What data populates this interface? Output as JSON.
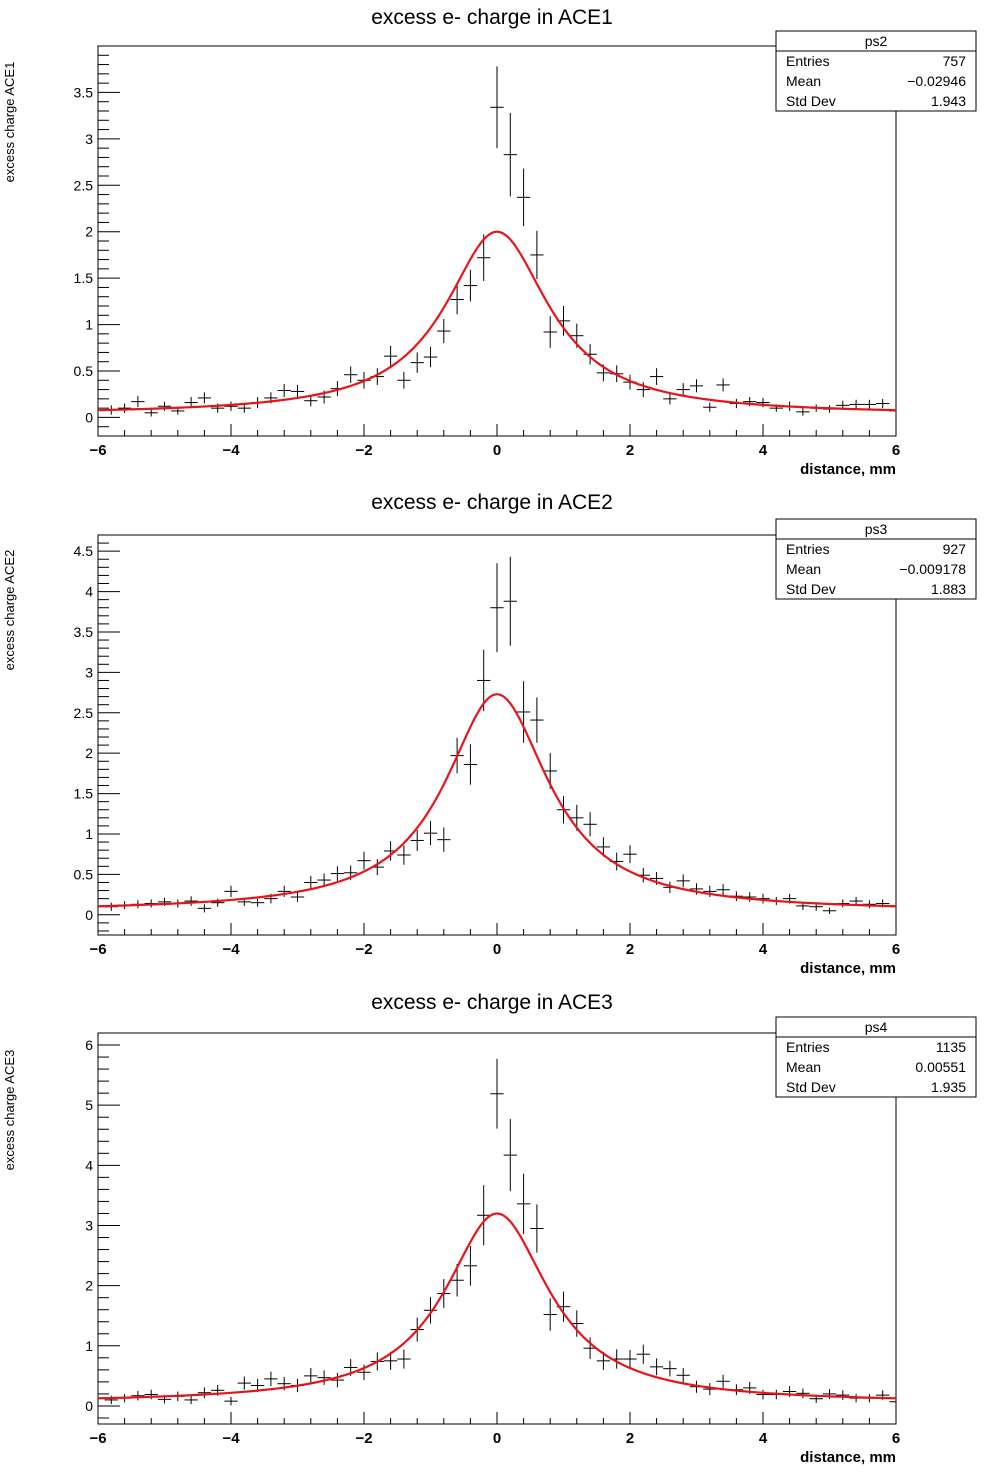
{
  "chart_data": [
    {
      "type": "scatter",
      "title": "excess e- charge in ACE1",
      "xlabel": "distance, mm",
      "ylabel": "excess charge ACE1",
      "xlim": [
        -6,
        6
      ],
      "ylim": [
        -0.2,
        4.0
      ],
      "yticks": [
        0,
        0.5,
        1,
        1.5,
        2,
        2.5,
        3,
        3.5
      ],
      "ytick_labels": [
        "0",
        "0.5",
        "1",
        "1.5",
        "2",
        "2.5",
        "3",
        "3.5"
      ],
      "xticks": [
        -6,
        -4,
        -2,
        0,
        2,
        4,
        6
      ],
      "xtick_labels": [
        "−6",
        "−4",
        "−2",
        "0",
        "2",
        "4",
        "6"
      ],
      "grid": false,
      "stats": {
        "name": "ps2",
        "rows": [
          [
            "Entries",
            "757"
          ],
          [
            "Mean",
            "−0.02946"
          ],
          [
            "Std Dev",
            "1.943"
          ]
        ]
      },
      "fit": {
        "color": "#e8141c",
        "peak": 2.0,
        "center": 0,
        "width": 0.95,
        "baseline": 0.03
      },
      "points": [
        {
          "x": -5.8,
          "y": 0.08,
          "err": 0.05
        },
        {
          "x": -5.6,
          "y": 0.1,
          "err": 0.05
        },
        {
          "x": -5.4,
          "y": 0.17,
          "err": 0.06
        },
        {
          "x": -5.2,
          "y": 0.05,
          "err": 0.04
        },
        {
          "x": -5.0,
          "y": 0.12,
          "err": 0.05
        },
        {
          "x": -4.8,
          "y": 0.07,
          "err": 0.04
        },
        {
          "x": -4.6,
          "y": 0.16,
          "err": 0.06
        },
        {
          "x": -4.4,
          "y": 0.21,
          "err": 0.06
        },
        {
          "x": -4.2,
          "y": 0.1,
          "err": 0.05
        },
        {
          "x": -4.0,
          "y": 0.12,
          "err": 0.05
        },
        {
          "x": -3.8,
          "y": 0.1,
          "err": 0.05
        },
        {
          "x": -3.6,
          "y": 0.16,
          "err": 0.06
        },
        {
          "x": -3.4,
          "y": 0.21,
          "err": 0.06
        },
        {
          "x": -3.2,
          "y": 0.29,
          "err": 0.07
        },
        {
          "x": -3.0,
          "y": 0.28,
          "err": 0.07
        },
        {
          "x": -2.8,
          "y": 0.18,
          "err": 0.06
        },
        {
          "x": -2.6,
          "y": 0.22,
          "err": 0.07
        },
        {
          "x": -2.4,
          "y": 0.31,
          "err": 0.08
        },
        {
          "x": -2.2,
          "y": 0.46,
          "err": 0.09
        },
        {
          "x": -2.0,
          "y": 0.4,
          "err": 0.09
        },
        {
          "x": -1.8,
          "y": 0.44,
          "err": 0.09
        },
        {
          "x": -1.6,
          "y": 0.66,
          "err": 0.11
        },
        {
          "x": -1.4,
          "y": 0.4,
          "err": 0.09
        },
        {
          "x": -1.2,
          "y": 0.59,
          "err": 0.11
        },
        {
          "x": -1.0,
          "y": 0.65,
          "err": 0.11
        },
        {
          "x": -0.8,
          "y": 0.93,
          "err": 0.13
        },
        {
          "x": -0.6,
          "y": 1.27,
          "err": 0.16
        },
        {
          "x": -0.4,
          "y": 1.42,
          "err": 0.17
        },
        {
          "x": -0.2,
          "y": 1.72,
          "err": 0.25
        },
        {
          "x": -0.0,
          "y": 3.34,
          "err": 0.44
        },
        {
          "x": 0.2,
          "y": 2.83,
          "err": 0.45
        },
        {
          "x": 0.4,
          "y": 2.37,
          "err": 0.31
        },
        {
          "x": 0.6,
          "y": 1.75,
          "err": 0.26
        },
        {
          "x": 0.8,
          "y": 0.92,
          "err": 0.17
        },
        {
          "x": 1.0,
          "y": 1.04,
          "err": 0.16
        },
        {
          "x": 1.2,
          "y": 0.88,
          "err": 0.13
        },
        {
          "x": 1.4,
          "y": 0.68,
          "err": 0.11
        },
        {
          "x": 1.6,
          "y": 0.48,
          "err": 0.09
        },
        {
          "x": 1.8,
          "y": 0.47,
          "err": 0.09
        },
        {
          "x": 2.0,
          "y": 0.38,
          "err": 0.08
        },
        {
          "x": 2.2,
          "y": 0.3,
          "err": 0.08
        },
        {
          "x": 2.4,
          "y": 0.44,
          "err": 0.09
        },
        {
          "x": 2.6,
          "y": 0.2,
          "err": 0.06
        },
        {
          "x": 2.8,
          "y": 0.3,
          "err": 0.07
        },
        {
          "x": 3.0,
          "y": 0.34,
          "err": 0.07
        },
        {
          "x": 3.2,
          "y": 0.11,
          "err": 0.05
        },
        {
          "x": 3.4,
          "y": 0.35,
          "err": 0.07
        },
        {
          "x": 3.6,
          "y": 0.15,
          "err": 0.05
        },
        {
          "x": 3.8,
          "y": 0.17,
          "err": 0.05
        },
        {
          "x": 4.0,
          "y": 0.16,
          "err": 0.05
        },
        {
          "x": 4.2,
          "y": 0.1,
          "err": 0.04
        },
        {
          "x": 4.4,
          "y": 0.12,
          "err": 0.05
        },
        {
          "x": 4.6,
          "y": 0.06,
          "err": 0.04
        },
        {
          "x": 4.8,
          "y": 0.1,
          "err": 0.04
        },
        {
          "x": 5.0,
          "y": 0.09,
          "err": 0.04
        },
        {
          "x": 5.2,
          "y": 0.13,
          "err": 0.05
        },
        {
          "x": 5.4,
          "y": 0.14,
          "err": 0.05
        },
        {
          "x": 5.6,
          "y": 0.14,
          "err": 0.05
        },
        {
          "x": 5.8,
          "y": 0.15,
          "err": 0.05
        },
        {
          "x": 6.0,
          "y": 0.07,
          "err": 0.04
        }
      ]
    },
    {
      "type": "scatter",
      "title": "excess e- charge in ACE2",
      "xlabel": "distance, mm",
      "ylabel": "excess charge ACE2",
      "xlim": [
        -6,
        6
      ],
      "ylim": [
        -0.25,
        4.7
      ],
      "yticks": [
        0,
        0.5,
        1,
        1.5,
        2,
        2.5,
        3,
        3.5,
        4,
        4.5
      ],
      "ytick_labels": [
        "0",
        "0.5",
        "1",
        "1.5",
        "2",
        "2.5",
        "3",
        "3.5",
        "4",
        "4.5"
      ],
      "xticks": [
        -6,
        -4,
        -2,
        0,
        2,
        4,
        6
      ],
      "xtick_labels": [
        "−6",
        "−4",
        "−2",
        "0",
        "2",
        "4",
        "6"
      ],
      "grid": false,
      "stats": {
        "name": "ps3",
        "rows": [
          [
            "Entries",
            "927"
          ],
          [
            "Mean",
            "−0.009178"
          ],
          [
            "Std Dev",
            "1.883"
          ]
        ]
      },
      "fit": {
        "color": "#e8141c",
        "peak": 2.73,
        "center": 0,
        "width": 0.95,
        "baseline": 0.04
      },
      "points": [
        {
          "x": -5.8,
          "y": 0.1,
          "err": 0.05
        },
        {
          "x": -5.6,
          "y": 0.12,
          "err": 0.05
        },
        {
          "x": -5.4,
          "y": 0.13,
          "err": 0.05
        },
        {
          "x": -5.2,
          "y": 0.14,
          "err": 0.05
        },
        {
          "x": -5.0,
          "y": 0.16,
          "err": 0.05
        },
        {
          "x": -4.8,
          "y": 0.14,
          "err": 0.05
        },
        {
          "x": -4.6,
          "y": 0.17,
          "err": 0.06
        },
        {
          "x": -4.4,
          "y": 0.08,
          "err": 0.05
        },
        {
          "x": -4.2,
          "y": 0.15,
          "err": 0.05
        },
        {
          "x": -4.0,
          "y": 0.29,
          "err": 0.07
        },
        {
          "x": -3.8,
          "y": 0.16,
          "err": 0.05
        },
        {
          "x": -3.6,
          "y": 0.15,
          "err": 0.05
        },
        {
          "x": -3.4,
          "y": 0.2,
          "err": 0.06
        },
        {
          "x": -3.2,
          "y": 0.29,
          "err": 0.07
        },
        {
          "x": -3.0,
          "y": 0.22,
          "err": 0.06
        },
        {
          "x": -2.8,
          "y": 0.4,
          "err": 0.08
        },
        {
          "x": -2.6,
          "y": 0.43,
          "err": 0.08
        },
        {
          "x": -2.4,
          "y": 0.51,
          "err": 0.09
        },
        {
          "x": -2.2,
          "y": 0.52,
          "err": 0.09
        },
        {
          "x": -2.0,
          "y": 0.67,
          "err": 0.11
        },
        {
          "x": -1.8,
          "y": 0.59,
          "err": 0.1
        },
        {
          "x": -1.6,
          "y": 0.79,
          "err": 0.12
        },
        {
          "x": -1.4,
          "y": 0.74,
          "err": 0.12
        },
        {
          "x": -1.2,
          "y": 0.92,
          "err": 0.13
        },
        {
          "x": -1.0,
          "y": 1.01,
          "err": 0.15
        },
        {
          "x": -0.8,
          "y": 0.93,
          "err": 0.15
        },
        {
          "x": -0.6,
          "y": 1.97,
          "err": 0.22
        },
        {
          "x": -0.4,
          "y": 1.86,
          "err": 0.25
        },
        {
          "x": -0.2,
          "y": 2.9,
          "err": 0.38
        },
        {
          "x": -0.0,
          "y": 3.8,
          "err": 0.55
        },
        {
          "x": 0.2,
          "y": 3.88,
          "err": 0.55
        },
        {
          "x": 0.4,
          "y": 2.51,
          "err": 0.38
        },
        {
          "x": 0.6,
          "y": 2.41,
          "err": 0.28
        },
        {
          "x": 0.8,
          "y": 1.78,
          "err": 0.22
        },
        {
          "x": 1.0,
          "y": 1.3,
          "err": 0.17
        },
        {
          "x": 1.2,
          "y": 1.2,
          "err": 0.16
        },
        {
          "x": 1.4,
          "y": 1.12,
          "err": 0.15
        },
        {
          "x": 1.6,
          "y": 0.84,
          "err": 0.12
        },
        {
          "x": 1.8,
          "y": 0.66,
          "err": 0.11
        },
        {
          "x": 2.0,
          "y": 0.75,
          "err": 0.11
        },
        {
          "x": 2.2,
          "y": 0.49,
          "err": 0.09
        },
        {
          "x": 2.4,
          "y": 0.45,
          "err": 0.08
        },
        {
          "x": 2.6,
          "y": 0.34,
          "err": 0.07
        },
        {
          "x": 2.8,
          "y": 0.42,
          "err": 0.08
        },
        {
          "x": 3.0,
          "y": 0.32,
          "err": 0.07
        },
        {
          "x": 3.2,
          "y": 0.29,
          "err": 0.07
        },
        {
          "x": 3.4,
          "y": 0.31,
          "err": 0.07
        },
        {
          "x": 3.6,
          "y": 0.23,
          "err": 0.06
        },
        {
          "x": 3.8,
          "y": 0.22,
          "err": 0.06
        },
        {
          "x": 4.0,
          "y": 0.2,
          "err": 0.06
        },
        {
          "x": 4.2,
          "y": 0.17,
          "err": 0.05
        },
        {
          "x": 4.4,
          "y": 0.2,
          "err": 0.06
        },
        {
          "x": 4.6,
          "y": 0.11,
          "err": 0.05
        },
        {
          "x": 4.8,
          "y": 0.1,
          "err": 0.05
        },
        {
          "x": 5.0,
          "y": 0.05,
          "err": 0.04
        },
        {
          "x": 5.2,
          "y": 0.14,
          "err": 0.05
        },
        {
          "x": 5.4,
          "y": 0.17,
          "err": 0.05
        },
        {
          "x": 5.6,
          "y": 0.13,
          "err": 0.05
        },
        {
          "x": 5.8,
          "y": 0.14,
          "err": 0.05
        },
        {
          "x": 6.0,
          "y": 0.1,
          "err": 0.05
        }
      ]
    },
    {
      "type": "scatter",
      "title": "excess e- charge in ACE3",
      "xlabel": "distance, mm",
      "ylabel": "excess charge  ACE3",
      "xlim": [
        -6,
        6
      ],
      "ylim": [
        -0.3,
        6.2
      ],
      "yticks": [
        0,
        1,
        2,
        3,
        4,
        5,
        6
      ],
      "ytick_labels": [
        "0",
        "1",
        "2",
        "3",
        "4",
        "5",
        "6"
      ],
      "xticks": [
        -6,
        -4,
        -2,
        0,
        2,
        4,
        6
      ],
      "xtick_labels": [
        "−6",
        "−4",
        "−2",
        "0",
        "2",
        "4",
        "6"
      ],
      "grid": false,
      "stats": {
        "name": "ps4",
        "rows": [
          [
            "Entries",
            "1135"
          ],
          [
            "Mean",
            "0.00551"
          ],
          [
            "Std Dev",
            "1.935"
          ]
        ]
      },
      "fit": {
        "color": "#e8141c",
        "peak": 3.2,
        "center": 0,
        "width": 0.95,
        "baseline": 0.05
      },
      "points": [
        {
          "x": -5.8,
          "y": 0.1,
          "err": 0.07
        },
        {
          "x": -5.6,
          "y": 0.13,
          "err": 0.07
        },
        {
          "x": -5.4,
          "y": 0.17,
          "err": 0.08
        },
        {
          "x": -5.2,
          "y": 0.19,
          "err": 0.08
        },
        {
          "x": -5.0,
          "y": 0.11,
          "err": 0.07
        },
        {
          "x": -4.8,
          "y": 0.16,
          "err": 0.08
        },
        {
          "x": -4.6,
          "y": 0.1,
          "err": 0.07
        },
        {
          "x": -4.4,
          "y": 0.22,
          "err": 0.09
        },
        {
          "x": -4.2,
          "y": 0.26,
          "err": 0.09
        },
        {
          "x": -4.0,
          "y": 0.08,
          "err": 0.07
        },
        {
          "x": -3.8,
          "y": 0.38,
          "err": 0.11
        },
        {
          "x": -3.6,
          "y": 0.34,
          "err": 0.11
        },
        {
          "x": -3.4,
          "y": 0.45,
          "err": 0.12
        },
        {
          "x": -3.2,
          "y": 0.37,
          "err": 0.11
        },
        {
          "x": -3.0,
          "y": 0.34,
          "err": 0.11
        },
        {
          "x": -2.8,
          "y": 0.5,
          "err": 0.13
        },
        {
          "x": -2.6,
          "y": 0.47,
          "err": 0.12
        },
        {
          "x": -2.4,
          "y": 0.43,
          "err": 0.12
        },
        {
          "x": -2.2,
          "y": 0.64,
          "err": 0.14
        },
        {
          "x": -2.0,
          "y": 0.56,
          "err": 0.13
        },
        {
          "x": -1.8,
          "y": 0.74,
          "err": 0.15
        },
        {
          "x": -1.6,
          "y": 0.75,
          "err": 0.15
        },
        {
          "x": -1.4,
          "y": 0.78,
          "err": 0.16
        },
        {
          "x": -1.2,
          "y": 1.27,
          "err": 0.2
        },
        {
          "x": -1.0,
          "y": 1.59,
          "err": 0.22
        },
        {
          "x": -0.8,
          "y": 1.87,
          "err": 0.24
        },
        {
          "x": -0.6,
          "y": 2.09,
          "err": 0.27
        },
        {
          "x": -0.4,
          "y": 2.33,
          "err": 0.33
        },
        {
          "x": -0.2,
          "y": 3.17,
          "err": 0.5
        },
        {
          "x": -0.0,
          "y": 5.19,
          "err": 0.58
        },
        {
          "x": 0.2,
          "y": 4.17,
          "err": 0.6
        },
        {
          "x": 0.4,
          "y": 3.36,
          "err": 0.5
        },
        {
          "x": 0.6,
          "y": 2.95,
          "err": 0.4
        },
        {
          "x": 0.8,
          "y": 1.52,
          "err": 0.27
        },
        {
          "x": 1.0,
          "y": 1.65,
          "err": 0.25
        },
        {
          "x": 1.2,
          "y": 1.37,
          "err": 0.22
        },
        {
          "x": 1.4,
          "y": 0.96,
          "err": 0.18
        },
        {
          "x": 1.6,
          "y": 0.75,
          "err": 0.15
        },
        {
          "x": 1.8,
          "y": 0.78,
          "err": 0.16
        },
        {
          "x": 2.0,
          "y": 0.78,
          "err": 0.15
        },
        {
          "x": 2.2,
          "y": 0.86,
          "err": 0.16
        },
        {
          "x": 2.4,
          "y": 0.65,
          "err": 0.14
        },
        {
          "x": 2.6,
          "y": 0.62,
          "err": 0.13
        },
        {
          "x": 2.8,
          "y": 0.51,
          "err": 0.12
        },
        {
          "x": 3.0,
          "y": 0.32,
          "err": 0.1
        },
        {
          "x": 3.2,
          "y": 0.28,
          "err": 0.1
        },
        {
          "x": 3.4,
          "y": 0.41,
          "err": 0.11
        },
        {
          "x": 3.6,
          "y": 0.27,
          "err": 0.09
        },
        {
          "x": 3.8,
          "y": 0.3,
          "err": 0.1
        },
        {
          "x": 4.0,
          "y": 0.19,
          "err": 0.08
        },
        {
          "x": 4.2,
          "y": 0.19,
          "err": 0.08
        },
        {
          "x": 4.4,
          "y": 0.24,
          "err": 0.09
        },
        {
          "x": 4.6,
          "y": 0.21,
          "err": 0.08
        },
        {
          "x": 4.8,
          "y": 0.12,
          "err": 0.07
        },
        {
          "x": 5.0,
          "y": 0.2,
          "err": 0.08
        },
        {
          "x": 5.2,
          "y": 0.18,
          "err": 0.08
        },
        {
          "x": 5.4,
          "y": 0.13,
          "err": 0.07
        },
        {
          "x": 5.6,
          "y": 0.13,
          "err": 0.07
        },
        {
          "x": 5.8,
          "y": 0.18,
          "err": 0.08
        },
        {
          "x": 6.0,
          "y": 0.07,
          "err": 0.06
        }
      ]
    }
  ]
}
